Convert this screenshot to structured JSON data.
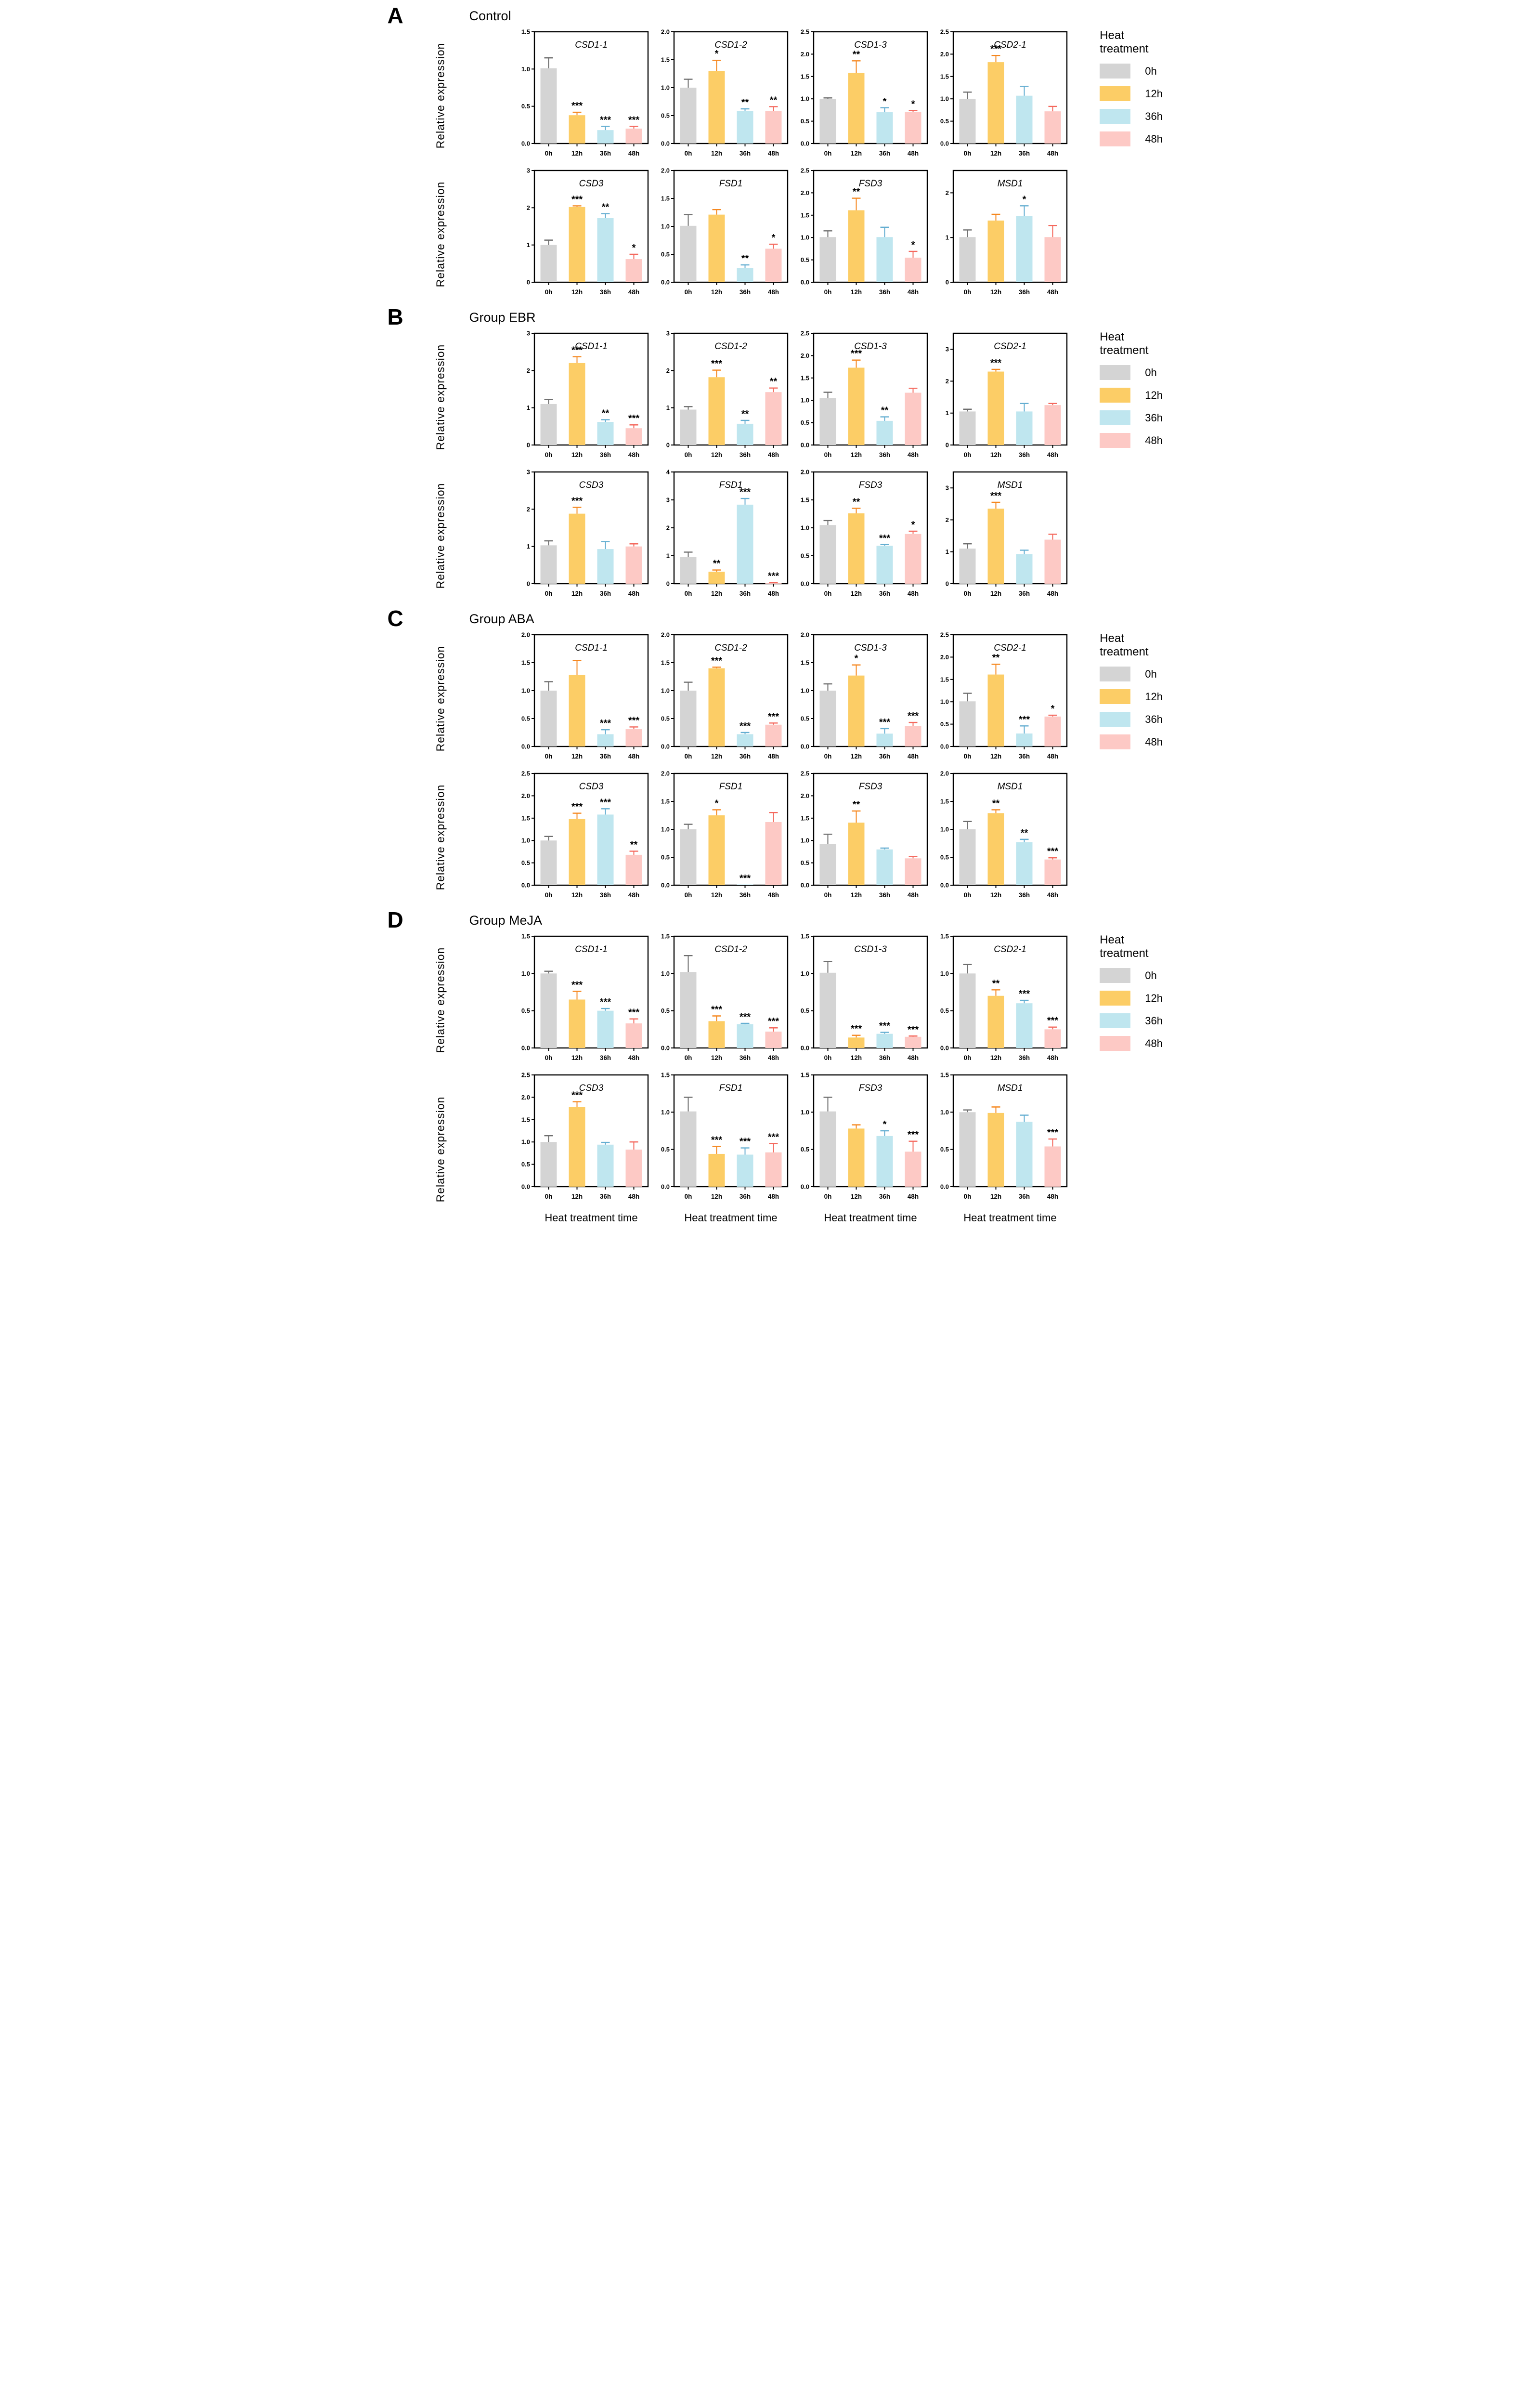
{
  "chart_data": {
    "type": "bar",
    "categories": [
      "0h",
      "12h",
      "36h",
      "48h"
    ],
    "ylabel": "Relative expression",
    "xlabel": "Heat treatment time",
    "grid": false,
    "legend": {
      "title": "Heat treatment",
      "position": "right",
      "entries": [
        {
          "label": "0h",
          "color": "#d4d4d4"
        },
        {
          "label": "12h",
          "color": "#fccd66"
        },
        {
          "label": "36h",
          "color": "#bfe6ef"
        },
        {
          "label": "48h",
          "color": "#fdc9c5"
        }
      ]
    },
    "error_bar_colors": [
      "#6e6e6e",
      "#f5871f",
      "#64aed1",
      "#f4695e"
    ],
    "panels": [
      {
        "letter": "A",
        "title": "Control",
        "charts": [
          {
            "gene": "CSD1-1",
            "ymax": 1.5,
            "yticks": [
              0,
              0.5,
              1,
              1.5
            ],
            "values": [
              1.01,
              0.38,
              0.18,
              0.2
            ],
            "errors": [
              0.14,
              0.04,
              0.05,
              0.03
            ],
            "sig": [
              "",
              "***",
              "***",
              "***"
            ]
          },
          {
            "gene": "CSD1-2",
            "ymax": 2.0,
            "yticks": [
              0,
              0.5,
              1,
              1.5,
              2
            ],
            "values": [
              1.0,
              1.3,
              0.58,
              0.58
            ],
            "errors": [
              0.15,
              0.19,
              0.04,
              0.08
            ],
            "sig": [
              "",
              "*",
              "**",
              "**"
            ]
          },
          {
            "gene": "CSD1-3",
            "ymax": 2.5,
            "yticks": [
              0,
              0.5,
              1,
              1.5,
              2,
              2.5
            ],
            "values": [
              1.0,
              1.58,
              0.7,
              0.71
            ],
            "errors": [
              0.02,
              0.27,
              0.1,
              0.03
            ],
            "sig": [
              "",
              "**",
              "*",
              "*"
            ]
          },
          {
            "gene": "CSD2-1",
            "ymax": 2.5,
            "yticks": [
              0,
              0.5,
              1,
              1.5,
              2,
              2.5
            ],
            "values": [
              1.0,
              1.82,
              1.07,
              0.72
            ],
            "errors": [
              0.15,
              0.15,
              0.21,
              0.11
            ],
            "sig": [
              "",
              "***",
              "",
              ""
            ]
          },
          {
            "gene": "CSD3",
            "ymax": 3.0,
            "yticks": [
              0,
              1,
              2,
              3
            ],
            "values": [
              1.0,
              2.02,
              1.72,
              0.62
            ],
            "errors": [
              0.13,
              0.03,
              0.12,
              0.13
            ],
            "sig": [
              "",
              "***",
              "**",
              "*"
            ]
          },
          {
            "gene": "FSD1",
            "ymax": 2.0,
            "yticks": [
              0,
              0.5,
              1,
              1.5,
              2
            ],
            "values": [
              1.01,
              1.21,
              0.25,
              0.6
            ],
            "errors": [
              0.2,
              0.09,
              0.06,
              0.08
            ],
            "sig": [
              "",
              "",
              "**",
              "*"
            ]
          },
          {
            "gene": "FSD3",
            "ymax": 2.5,
            "yticks": [
              0,
              0.5,
              1,
              1.5,
              2,
              2.5
            ],
            "values": [
              1.01,
              1.61,
              1.01,
              0.55
            ],
            "errors": [
              0.14,
              0.27,
              0.22,
              0.14
            ],
            "sig": [
              "",
              "**",
              "",
              "*"
            ]
          },
          {
            "gene": "MSD1",
            "ymax": 2.5,
            "yticks": [
              0,
              1,
              2
            ],
            "values": [
              1.01,
              1.38,
              1.48,
              1.01
            ],
            "errors": [
              0.16,
              0.14,
              0.23,
              0.26
            ],
            "sig": [
              "",
              "",
              "*",
              ""
            ]
          }
        ]
      },
      {
        "letter": "B",
        "title": "Group EBR",
        "charts": [
          {
            "gene": "CSD1-1",
            "ymax": 3.0,
            "yticks": [
              0,
              1,
              2,
              3
            ],
            "values": [
              1.1,
              2.2,
              0.62,
              0.45
            ],
            "errors": [
              0.12,
              0.17,
              0.06,
              0.09
            ],
            "sig": [
              "",
              "***",
              "**",
              "***"
            ]
          },
          {
            "gene": "CSD1-2",
            "ymax": 3.0,
            "yticks": [
              0,
              1,
              2,
              3
            ],
            "values": [
              0.95,
              1.82,
              0.57,
              1.42
            ],
            "errors": [
              0.08,
              0.19,
              0.09,
              0.11
            ],
            "sig": [
              "",
              "***",
              "**",
              "**"
            ]
          },
          {
            "gene": "CSD1-3",
            "ymax": 2.5,
            "yticks": [
              0,
              0.5,
              1,
              1.5,
              2,
              2.5
            ],
            "values": [
              1.05,
              1.73,
              0.54,
              1.17
            ],
            "errors": [
              0.13,
              0.17,
              0.09,
              0.1
            ],
            "sig": [
              "",
              "***",
              "**",
              ""
            ]
          },
          {
            "gene": "CSD2-1",
            "ymax": 3.5,
            "yticks": [
              0,
              1,
              2,
              3
            ],
            "values": [
              1.05,
              2.3,
              1.05,
              1.25
            ],
            "errors": [
              0.07,
              0.07,
              0.25,
              0.05
            ],
            "sig": [
              "",
              "***",
              "",
              ""
            ]
          },
          {
            "gene": "CSD3",
            "ymax": 3.0,
            "yticks": [
              0,
              1,
              2,
              3
            ],
            "values": [
              1.03,
              1.88,
              0.93,
              1.0
            ],
            "errors": [
              0.12,
              0.17,
              0.2,
              0.07
            ],
            "sig": [
              "",
              "***",
              "",
              ""
            ]
          },
          {
            "gene": "FSD1",
            "ymax": 4.0,
            "yticks": [
              0,
              1,
              2,
              3,
              4
            ],
            "values": [
              0.95,
              0.43,
              2.83,
              0.03
            ],
            "errors": [
              0.18,
              0.06,
              0.22,
              0.01
            ],
            "sig": [
              "",
              "**",
              "***",
              "***"
            ]
          },
          {
            "gene": "FSD3",
            "ymax": 2.0,
            "yticks": [
              0,
              0.5,
              1,
              1.5,
              2
            ],
            "values": [
              1.05,
              1.26,
              0.68,
              0.89
            ],
            "errors": [
              0.08,
              0.09,
              0.02,
              0.05
            ],
            "sig": [
              "",
              "**",
              "***",
              "*"
            ]
          },
          {
            "gene": "MSD1",
            "ymax": 3.5,
            "yticks": [
              0,
              1,
              2,
              3
            ],
            "values": [
              1.1,
              2.35,
              0.93,
              1.38
            ],
            "errors": [
              0.15,
              0.2,
              0.12,
              0.17
            ],
            "sig": [
              "",
              "***",
              "",
              ""
            ]
          }
        ]
      },
      {
        "letter": "C",
        "title": "Group ABA",
        "charts": [
          {
            "gene": "CSD1-1",
            "ymax": 2.0,
            "yticks": [
              0,
              0.5,
              1,
              1.5,
              2
            ],
            "values": [
              1.0,
              1.28,
              0.22,
              0.31
            ],
            "errors": [
              0.16,
              0.26,
              0.08,
              0.04
            ],
            "sig": [
              "",
              "",
              "***",
              "***"
            ]
          },
          {
            "gene": "CSD1-2",
            "ymax": 2.0,
            "yticks": [
              0,
              0.5,
              1,
              1.5,
              2
            ],
            "values": [
              1.0,
              1.4,
              0.22,
              0.39
            ],
            "errors": [
              0.15,
              0.02,
              0.03,
              0.03
            ],
            "sig": [
              "",
              "***",
              "***",
              "***"
            ]
          },
          {
            "gene": "CSD1-3",
            "ymax": 2.0,
            "yticks": [
              0,
              0.5,
              1,
              1.5,
              2
            ],
            "values": [
              1.0,
              1.27,
              0.23,
              0.37
            ],
            "errors": [
              0.12,
              0.19,
              0.09,
              0.06
            ],
            "sig": [
              "",
              "*",
              "***",
              "***"
            ]
          },
          {
            "gene": "CSD2-1",
            "ymax": 2.5,
            "yticks": [
              0,
              0.5,
              1,
              1.5,
              2,
              2.5
            ],
            "values": [
              1.01,
              1.61,
              0.29,
              0.67
            ],
            "errors": [
              0.18,
              0.23,
              0.17,
              0.03
            ],
            "sig": [
              "",
              "**",
              "***",
              "*"
            ]
          },
          {
            "gene": "CSD3",
            "ymax": 2.5,
            "yticks": [
              0,
              0.5,
              1,
              1.5,
              2,
              2.5
            ],
            "values": [
              1.0,
              1.48,
              1.58,
              0.68
            ],
            "errors": [
              0.09,
              0.13,
              0.13,
              0.08
            ],
            "sig": [
              "",
              "***",
              "***",
              "**"
            ]
          },
          {
            "gene": "FSD1",
            "ymax": 2.0,
            "yticks": [
              0,
              0.5,
              1,
              1.5,
              2
            ],
            "values": [
              1.0,
              1.25,
              0.01,
              1.13
            ],
            "errors": [
              0.09,
              0.1,
              0.0,
              0.17
            ],
            "sig": [
              "",
              "*",
              "***",
              ""
            ]
          },
          {
            "gene": "FSD3",
            "ymax": 2.5,
            "yticks": [
              0,
              0.5,
              1,
              1.5,
              2,
              2.5
            ],
            "values": [
              0.92,
              1.4,
              0.8,
              0.6
            ],
            "errors": [
              0.22,
              0.26,
              0.03,
              0.04
            ],
            "sig": [
              "",
              "**",
              "",
              ""
            ]
          },
          {
            "gene": "MSD1",
            "ymax": 2.0,
            "yticks": [
              0,
              0.5,
              1,
              1.5,
              2
            ],
            "values": [
              1.0,
              1.29,
              0.77,
              0.46
            ],
            "errors": [
              0.14,
              0.06,
              0.05,
              0.03
            ],
            "sig": [
              "",
              "**",
              "**",
              "***"
            ]
          }
        ]
      },
      {
        "letter": "D",
        "title": "Group MeJA",
        "charts": [
          {
            "gene": "CSD1-1",
            "ymax": 1.5,
            "yticks": [
              0,
              0.5,
              1,
              1.5
            ],
            "values": [
              1.0,
              0.65,
              0.5,
              0.33
            ],
            "errors": [
              0.03,
              0.11,
              0.03,
              0.06
            ],
            "sig": [
              "",
              "***",
              "***",
              "***"
            ]
          },
          {
            "gene": "CSD1-2",
            "ymax": 1.5,
            "yticks": [
              0,
              0.5,
              1,
              1.5
            ],
            "values": [
              1.02,
              0.36,
              0.32,
              0.22
            ],
            "errors": [
              0.22,
              0.07,
              0.01,
              0.05
            ],
            "sig": [
              "",
              "***",
              "***",
              "***"
            ]
          },
          {
            "gene": "CSD1-3",
            "ymax": 1.5,
            "yticks": [
              0,
              0.5,
              1,
              1.5
            ],
            "values": [
              1.01,
              0.14,
              0.19,
              0.15
            ],
            "errors": [
              0.15,
              0.03,
              0.02,
              0.01
            ],
            "sig": [
              "",
              "***",
              "***",
              "***"
            ]
          },
          {
            "gene": "CSD2-1",
            "ymax": 1.5,
            "yticks": [
              0,
              0.5,
              1,
              1.5
            ],
            "values": [
              1.0,
              0.7,
              0.6,
              0.25
            ],
            "errors": [
              0.12,
              0.08,
              0.04,
              0.03
            ],
            "sig": [
              "",
              "**",
              "***",
              "***"
            ]
          },
          {
            "gene": "CSD3",
            "ymax": 2.5,
            "yticks": [
              0,
              0.5,
              1,
              1.5,
              2,
              2.5
            ],
            "values": [
              1.0,
              1.78,
              0.94,
              0.83
            ],
            "errors": [
              0.14,
              0.12,
              0.05,
              0.17
            ],
            "sig": [
              "",
              "***",
              "",
              ""
            ]
          },
          {
            "gene": "FSD1",
            "ymax": 1.5,
            "yticks": [
              0,
              0.5,
              1,
              1.5
            ],
            "values": [
              1.01,
              0.44,
              0.43,
              0.46
            ],
            "errors": [
              0.19,
              0.1,
              0.09,
              0.12
            ],
            "sig": [
              "",
              "***",
              "***",
              "***"
            ]
          },
          {
            "gene": "FSD3",
            "ymax": 1.5,
            "yticks": [
              0,
              0.5,
              1,
              1.5
            ],
            "values": [
              1.01,
              0.78,
              0.68,
              0.47
            ],
            "errors": [
              0.19,
              0.05,
              0.07,
              0.14
            ],
            "sig": [
              "",
              "",
              "*",
              "***"
            ]
          },
          {
            "gene": "MSD1",
            "ymax": 1.5,
            "yticks": [
              0,
              0.5,
              1,
              1.5
            ],
            "values": [
              1.0,
              0.99,
              0.87,
              0.54
            ],
            "errors": [
              0.03,
              0.08,
              0.09,
              0.1
            ],
            "sig": [
              "",
              "",
              "",
              "***"
            ]
          }
        ]
      }
    ]
  }
}
